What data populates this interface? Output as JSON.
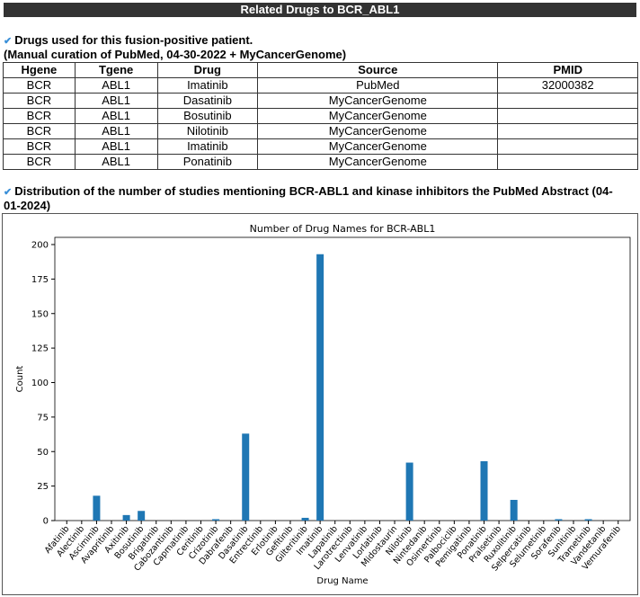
{
  "header": {
    "title": "Related Drugs to BCR_ABL1"
  },
  "section1": {
    "line1": "Drugs used for this fusion-positive patient.",
    "line2": "(Manual curation of PubMed, 04-30-2022 + MyCancerGenome)"
  },
  "table": {
    "headers": [
      "Hgene",
      "Tgene",
      "Drug",
      "Source",
      "PMID"
    ],
    "rows": [
      [
        "BCR",
        "ABL1",
        "Imatinib",
        "PubMed",
        "32000382"
      ],
      [
        "BCR",
        "ABL1",
        "Dasatinib",
        "MyCancerGenome",
        ""
      ],
      [
        "BCR",
        "ABL1",
        "Bosutinib",
        "MyCancerGenome",
        ""
      ],
      [
        "BCR",
        "ABL1",
        "Nilotinib",
        "MyCancerGenome",
        ""
      ],
      [
        "BCR",
        "ABL1",
        "Imatinib",
        "MyCancerGenome",
        ""
      ],
      [
        "BCR",
        "ABL1",
        "Ponatinib",
        "MyCancerGenome",
        ""
      ]
    ]
  },
  "section2": {
    "line1": "Distribution of the number of studies mentioning BCR-ABL1 and kinase inhibitors the PubMed Abstract (04-",
    "line2": "01-2024)"
  },
  "chart_data": {
    "type": "bar",
    "title": "Number of Drug Names for BCR-ABL1",
    "xlabel": "Drug Name",
    "ylabel": "Count",
    "ylim": [
      0,
      200
    ],
    "yticks": [
      0,
      25,
      50,
      75,
      100,
      125,
      150,
      175,
      200
    ],
    "color": "#1f77b4",
    "categories": [
      "Afatinib",
      "Alectinib",
      "Asciminib",
      "Avapritinib",
      "Axitinib",
      "Bosutinib",
      "Brigatinib",
      "Cabozantinib",
      "Capmatinib",
      "Ceritinib",
      "Crizotinib",
      "Dabrafenib",
      "Dasatinib",
      "Entrectinib",
      "Erlotinib",
      "Gefitinib",
      "Gilteritinib",
      "Imatinib",
      "Lapatinib",
      "Larotrectinib",
      "Lenvatinib",
      "Lorlatinib",
      "Midostaurin",
      "Nilotinib",
      "Nintedanib",
      "Osimertinib",
      "Palbociclib",
      "Pemigatinib",
      "Ponatinib",
      "Pralsetinib",
      "Ruxolitinib",
      "Selpercatinib",
      "Selumetinib",
      "Sorafenib",
      "Sunitinib",
      "Trametinib",
      "Vandetanib",
      "Vemurafenib"
    ],
    "values": [
      0,
      0,
      18,
      0,
      4,
      7,
      0,
      0,
      0,
      0,
      1,
      0,
      63,
      0,
      0,
      0,
      2,
      193,
      0,
      0,
      0,
      0,
      0,
      42,
      0,
      0,
      0,
      0,
      43,
      0,
      15,
      0,
      0,
      1,
      0,
      1,
      0,
      0
    ]
  }
}
